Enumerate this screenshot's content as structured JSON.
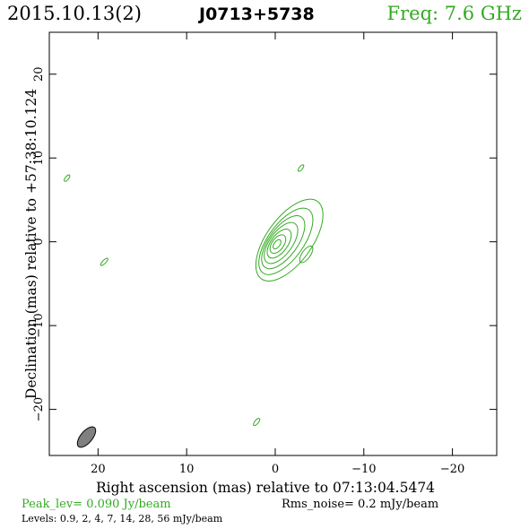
{
  "header": {
    "date": "2015.10.13(2)",
    "source": "J0713+5738",
    "freq": "Freq: 7.6 GHz"
  },
  "footer": {
    "peak": "Peak_lev=  0.090 Jy/beam",
    "rms": "Rms_noise=   0.2 mJy/beam",
    "levels": "Levels: 0.9,   2,   4,   7,  14,  28,  56 mJy/beam"
  },
  "colors": {
    "contour": "#33aa22",
    "axes": "#000000",
    "beam_fill": "#808080"
  },
  "chart_data": {
    "type": "contour",
    "xlabel": "Right ascension (mas) relative to 07:13:04.5474",
    "ylabel": "Declination (mas) relative to +57:38:10.124",
    "xlim": [
      25.5,
      -25
    ],
    "ylim": [
      -25.5,
      25
    ],
    "x_ticks": [
      20,
      10,
      0,
      -10,
      -20
    ],
    "x_tick_labels": [
      "20",
      "10",
      "0",
      "−10",
      "−20"
    ],
    "y_ticks": [
      20,
      10,
      0,
      -10,
      -20
    ],
    "y_tick_labels": [
      "20",
      "10",
      "0",
      "−10",
      "−20"
    ],
    "contour_levels_mJy": [
      0.9,
      2,
      4,
      7,
      14,
      28,
      56
    ],
    "core": {
      "x": -0.2,
      "y": -0.3,
      "pa_deg": 36,
      "contours": [
        {
          "level": 0.9,
          "dx": -1.4,
          "dy": 0.5,
          "major": 5.4,
          "minor": 2.7
        },
        {
          "level": 2,
          "dx": -1.0,
          "dy": 0.35,
          "major": 4.4,
          "minor": 2.1
        },
        {
          "level": 4,
          "dx": -0.7,
          "dy": 0.25,
          "major": 3.5,
          "minor": 1.7
        },
        {
          "level": 7,
          "dx": -0.45,
          "dy": 0.15,
          "major": 2.7,
          "minor": 1.35
        },
        {
          "level": 14,
          "dx": -0.25,
          "dy": 0.08,
          "major": 1.9,
          "minor": 1.0
        },
        {
          "level": 28,
          "dx": -0.1,
          "dy": 0.03,
          "major": 1.2,
          "minor": 0.7
        },
        {
          "level": 56,
          "dx": 0.0,
          "dy": 0.0,
          "major": 0.6,
          "minor": 0.35
        }
      ]
    },
    "islands": [
      {
        "x": 23.5,
        "y": 7.6,
        "major": 0.45,
        "minor": 0.2,
        "pa_deg": 40
      },
      {
        "x": -2.9,
        "y": 8.8,
        "major": 0.45,
        "minor": 0.2,
        "pa_deg": 40
      },
      {
        "x": 19.3,
        "y": -2.4,
        "major": 0.55,
        "minor": 0.2,
        "pa_deg": 45
      },
      {
        "x": -3.5,
        "y": -1.5,
        "major": 1.1,
        "minor": 0.5,
        "pa_deg": 35
      },
      {
        "x": 2.1,
        "y": -21.5,
        "major": 0.5,
        "minor": 0.22,
        "pa_deg": 40
      }
    ],
    "beam": {
      "x": 21.3,
      "y": -23.3,
      "major": 1.4,
      "minor": 0.7,
      "pa_deg": 40
    }
  }
}
